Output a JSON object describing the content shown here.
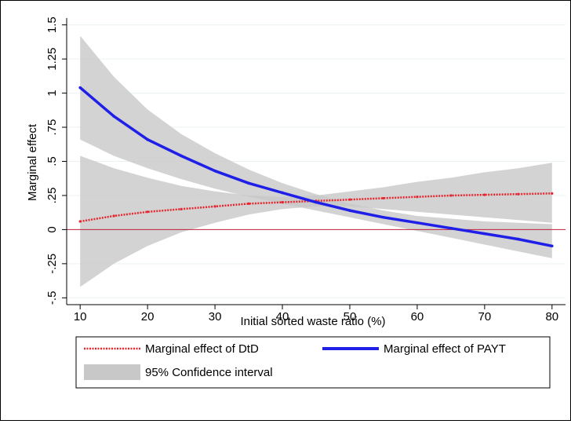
{
  "chart_data": {
    "type": "line",
    "title": "",
    "xlabel": "Initial sorted waste ratio (%)",
    "ylabel": "Marginal effect",
    "xlim": [
      8,
      82
    ],
    "ylim": [
      -0.55,
      1.55
    ],
    "x_ticks": [
      10,
      20,
      30,
      40,
      50,
      60,
      70,
      80
    ],
    "x_tick_labels": [
      "10",
      "20",
      "30",
      "40",
      "50",
      "60",
      "70",
      "80"
    ],
    "y_ticks": [
      -0.5,
      -0.25,
      0,
      0.25,
      0.5,
      0.75,
      1,
      1.25,
      1.5
    ],
    "y_tick_labels": [
      "-.5",
      "-.25",
      "0",
      ".25",
      ".5",
      ".75",
      "1",
      "1.25",
      "1.5"
    ],
    "grid": true,
    "reference_line": 0,
    "legend_position": "bottom",
    "x": [
      10,
      15,
      20,
      25,
      30,
      35,
      40,
      45,
      50,
      55,
      60,
      65,
      70,
      75,
      80
    ],
    "series": [
      {
        "name": "Marginal effect of DtD",
        "color": "#e8252d",
        "style": "line-with-markers",
        "values": [
          0.06,
          0.1,
          0.13,
          0.15,
          0.17,
          0.19,
          0.2,
          0.21,
          0.22,
          0.23,
          0.24,
          0.25,
          0.255,
          0.26,
          0.265
        ],
        "ci_lower": [
          -0.42,
          -0.25,
          -0.12,
          -0.02,
          0.05,
          0.11,
          0.15,
          0.17,
          0.17,
          0.15,
          0.13,
          0.11,
          0.09,
          0.07,
          0.05
        ],
        "ci_upper": [
          0.54,
          0.45,
          0.38,
          0.32,
          0.28,
          0.25,
          0.24,
          0.25,
          0.28,
          0.31,
          0.35,
          0.38,
          0.42,
          0.45,
          0.49
        ]
      },
      {
        "name": "Marginal effect of PAYT",
        "color": "#1f1fe8",
        "style": "thick-line",
        "values": [
          1.04,
          0.83,
          0.66,
          0.54,
          0.43,
          0.34,
          0.27,
          0.2,
          0.14,
          0.09,
          0.05,
          0.01,
          -0.03,
          -0.07,
          -0.12
        ],
        "ci_lower": [
          0.66,
          0.54,
          0.45,
          0.37,
          0.3,
          0.24,
          0.19,
          0.14,
          0.09,
          0.04,
          -0.01,
          -0.06,
          -0.11,
          -0.16,
          -0.21
        ],
        "ci_upper": [
          1.42,
          1.12,
          0.88,
          0.7,
          0.56,
          0.44,
          0.34,
          0.26,
          0.19,
          0.14,
          0.1,
          0.08,
          0.06,
          0.05,
          0.04
        ]
      }
    ],
    "confidence_band": {
      "name": "95% Confidence interval",
      "color": "#c8c8c8"
    },
    "colors": {
      "grid": "#eaf2f3",
      "zero_line": "#c0203a",
      "axis": "#000000"
    }
  }
}
